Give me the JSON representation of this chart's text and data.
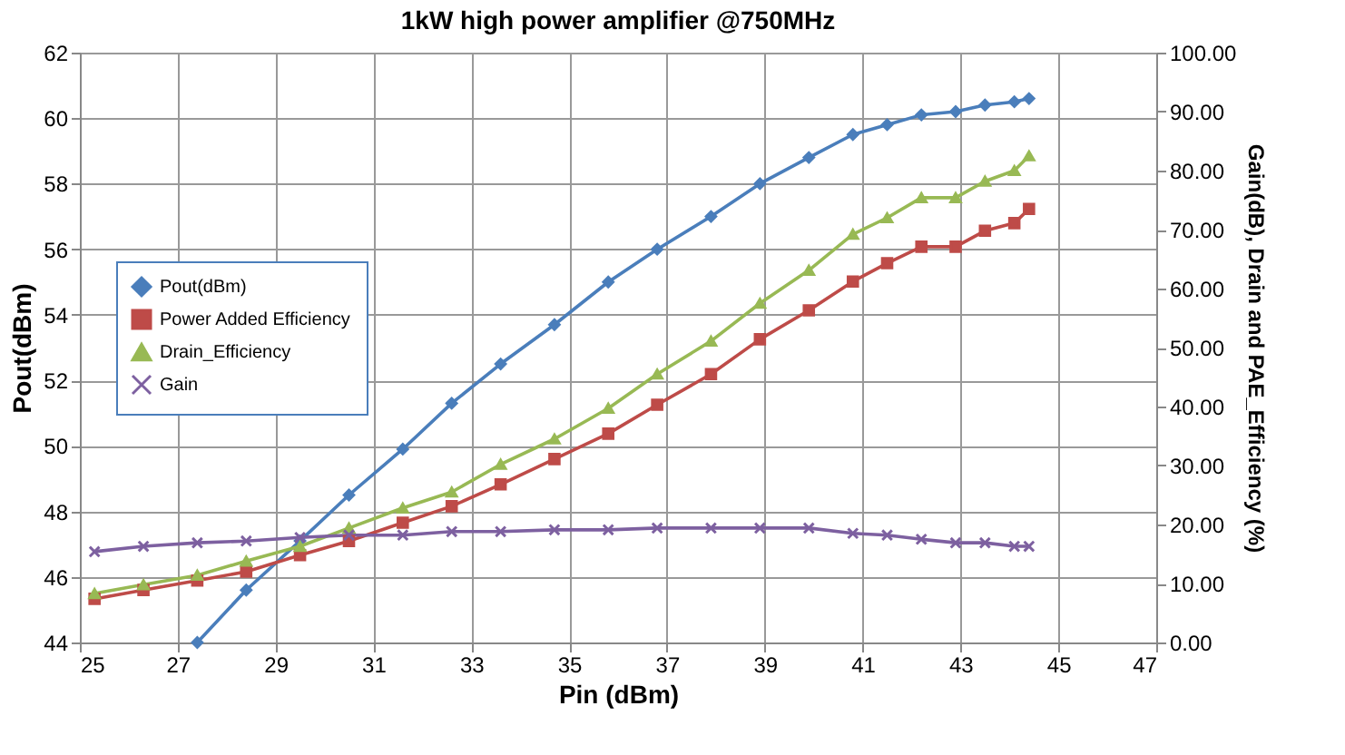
{
  "chart_data": {
    "type": "line",
    "title": "1kW high power amplifier @750MHz",
    "xlabel": "Pin (dBm)",
    "ylabel": "Pout(dBm)",
    "y2label": "Gain(dB), Drain and PAE_Efficiency (%)",
    "x": [
      25.3,
      26.3,
      27.4,
      28.4,
      29.5,
      30.5,
      31.6,
      32.6,
      33.6,
      34.7,
      35.8,
      36.8,
      37.9,
      38.9,
      39.9,
      40.8,
      41.5,
      42.2,
      42.9,
      43.5,
      44.1,
      44.4
    ],
    "series": [
      {
        "name": "Pout(dBm)",
        "color": "#4a7ebb",
        "marker": "diamond",
        "values": [
          null,
          null,
          44.0,
          45.6,
          47.1,
          48.5,
          49.9,
          51.3,
          52.5,
          53.7,
          55.0,
          56.0,
          57.0,
          58.0,
          58.8,
          59.5,
          59.8,
          60.1,
          60.2,
          60.4,
          60.5,
          60.6
        ]
      },
      {
        "name": "Power Added Efficiency",
        "color": "#be4b48",
        "marker": "square",
        "axis": "y2",
        "values": [
          7.4,
          8.9,
          10.5,
          12.0,
          14.8,
          17.2,
          20.3,
          23.1,
          26.8,
          31.1,
          35.4,
          40.3,
          45.5,
          51.4,
          56.3,
          61.2,
          64.3,
          67.1,
          67.1,
          69.8,
          71.1,
          73.5
        ]
      },
      {
        "name": "Drain_Efficiency",
        "color": "#98b954",
        "marker": "triangle",
        "axis": "y2",
        "values": [
          8.3,
          9.8,
          11.4,
          13.8,
          16.3,
          19.4,
          22.8,
          25.5,
          30.2,
          34.5,
          39.7,
          45.5,
          51.1,
          57.5,
          63.1,
          69.2,
          72.0,
          75.4,
          75.4,
          78.2,
          80.0,
          82.5
        ]
      },
      {
        "name": "Gain",
        "color": "#7d60a0",
        "marker": "cross",
        "axis": "y2",
        "values": [
          15.4,
          16.3,
          16.9,
          17.2,
          17.8,
          18.2,
          18.2,
          18.8,
          18.8,
          19.1,
          19.1,
          19.4,
          19.4,
          19.4,
          19.4,
          18.5,
          18.2,
          17.5,
          16.9,
          16.9,
          16.3,
          16.3
        ]
      }
    ],
    "xlim": [
      25,
      47
    ],
    "xticks": [
      25,
      27,
      29,
      31,
      33,
      35,
      37,
      39,
      41,
      43,
      45,
      47
    ],
    "ylim": [
      44,
      62
    ],
    "yticks": [
      44,
      46,
      48,
      50,
      52,
      54,
      56,
      58,
      60,
      62
    ],
    "y2lim": [
      0,
      100
    ],
    "y2ticks": [
      {
        "value": 0,
        "label": "0.00"
      },
      {
        "value": 10,
        "label": "10.00"
      },
      {
        "value": 20,
        "label": "20.00"
      },
      {
        "value": 30,
        "label": "30.00"
      },
      {
        "value": 40,
        "label": "40.00"
      },
      {
        "value": 50,
        "label": "50.00"
      },
      {
        "value": 60,
        "label": "60.00"
      },
      {
        "value": 70,
        "label": "70.00"
      },
      {
        "value": 80,
        "label": "80.00"
      },
      {
        "value": 90,
        "label": "90.00"
      },
      {
        "value": 100,
        "label": "100.00"
      }
    ],
    "grid": true,
    "legend": "left",
    "line_style": "solid"
  }
}
